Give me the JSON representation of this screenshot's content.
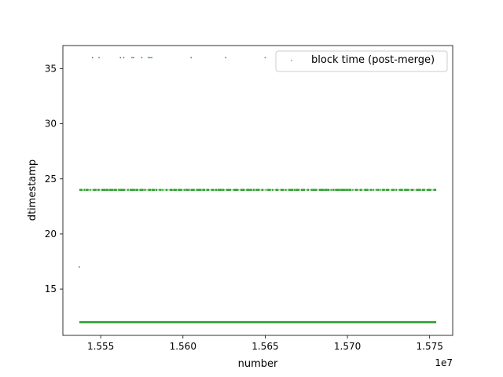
{
  "chart_data": {
    "type": "scatter",
    "title": "",
    "xlabel": "number",
    "ylabel": "dtimestamp",
    "x_offset_label": "1e7",
    "xlim": [
      1.5527,
      1.5764
    ],
    "ylim": [
      10.8,
      37.1
    ],
    "x_ticks": [
      1.555,
      1.56,
      1.565,
      1.57,
      1.575
    ],
    "x_tick_labels": [
      "1.555",
      "1.560",
      "1.565",
      "1.570",
      "1.575"
    ],
    "y_ticks": [
      15,
      20,
      25,
      30,
      35
    ],
    "y_tick_labels": [
      "15",
      "20",
      "25",
      "30",
      "35"
    ],
    "grid": false,
    "legend": {
      "placement": "top-right",
      "entries": [
        "block time (post-merge)"
      ]
    },
    "series": [
      {
        "name": "block time (post-merge)",
        "color": "#2ca02c",
        "bands": [
          {
            "y": 12,
            "x_range": [
              1.5537,
              1.5754
            ],
            "density": "continuous"
          },
          {
            "y": 24,
            "x_range": [
              1.5537,
              1.5754
            ],
            "density": "dense"
          }
        ],
        "points": [
          {
            "x": 1.5537,
            "y": 17
          },
          {
            "x": 1.5545,
            "y": 36
          },
          {
            "x": 1.5549,
            "y": 36
          },
          {
            "x": 1.5562,
            "y": 36
          },
          {
            "x": 1.5564,
            "y": 36
          },
          {
            "x": 1.5569,
            "y": 36
          },
          {
            "x": 1.557,
            "y": 36
          },
          {
            "x": 1.5575,
            "y": 36
          },
          {
            "x": 1.5579,
            "y": 36
          },
          {
            "x": 1.558,
            "y": 36
          },
          {
            "x": 1.5581,
            "y": 36
          },
          {
            "x": 1.5605,
            "y": 36
          },
          {
            "x": 1.5626,
            "y": 36
          },
          {
            "x": 1.565,
            "y": 36
          }
        ]
      }
    ]
  }
}
